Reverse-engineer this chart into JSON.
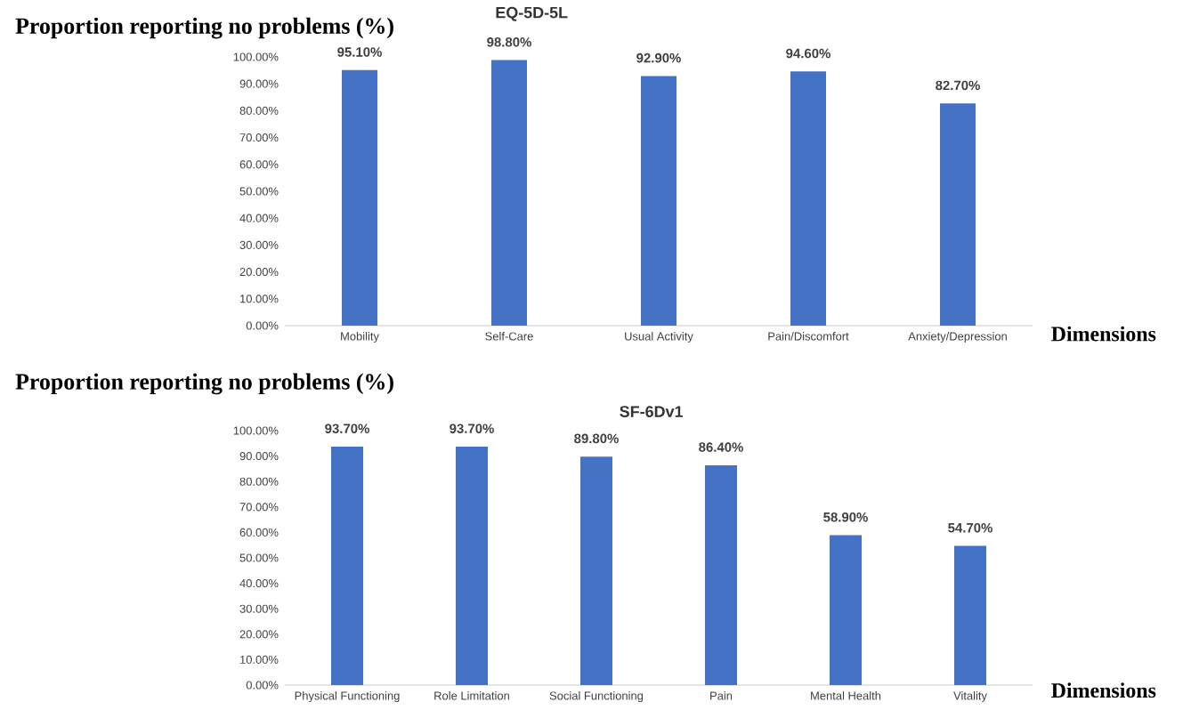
{
  "chart_data": [
    {
      "type": "bar",
      "title": "EQ-5D-5L",
      "ylabel": "Proportion reporting no problems (%)",
      "xlabel": "Dimensions",
      "categories": [
        "Mobility",
        "Self-Care",
        "Usual Activity",
        "Pain/Discomfort",
        "Anxiety/Depression"
      ],
      "values": [
        95.1,
        98.8,
        92.9,
        94.6,
        82.7
      ],
      "value_labels": [
        "95.10%",
        "98.80%",
        "92.90%",
        "94.60%",
        "82.70%"
      ],
      "color": "#4472c4",
      "ylim": [
        0,
        100
      ],
      "yticks": [
        {
          "value": 0,
          "label": "0.00%"
        },
        {
          "value": 10,
          "label": "10.00%"
        },
        {
          "value": 20,
          "label": "20.00%"
        },
        {
          "value": 30,
          "label": "30.00%"
        },
        {
          "value": 40,
          "label": "40.00%"
        },
        {
          "value": 50,
          "label": "50.00%"
        },
        {
          "value": 60,
          "label": "60.00%"
        },
        {
          "value": 70,
          "label": "70.00%"
        },
        {
          "value": 80,
          "label": "80.00%"
        },
        {
          "value": 90,
          "label": "90.00%"
        },
        {
          "value": 100,
          "label": "100.00%"
        }
      ]
    },
    {
      "type": "bar",
      "title": "SF-6Dv1",
      "ylabel": "Proportion reporting no problems (%)",
      "xlabel": "Dimensions",
      "categories": [
        "Physical Functioning",
        "Role Limitation",
        "Social Functioning",
        "Pain",
        "Mental Health",
        "Vitality"
      ],
      "values": [
        93.7,
        93.7,
        89.8,
        86.4,
        58.9,
        54.7
      ],
      "value_labels": [
        "93.70%",
        "93.70%",
        "89.80%",
        "86.40%",
        "58.90%",
        "54.70%"
      ],
      "color": "#4472c4",
      "ylim": [
        0,
        100
      ],
      "yticks": [
        {
          "value": 0,
          "label": "0.00%"
        },
        {
          "value": 10,
          "label": "10.00%"
        },
        {
          "value": 20,
          "label": "20.00%"
        },
        {
          "value": 30,
          "label": "30.00%"
        },
        {
          "value": 40,
          "label": "40.00%"
        },
        {
          "value": 50,
          "label": "50.00%"
        },
        {
          "value": 60,
          "label": "60.00%"
        },
        {
          "value": 70,
          "label": "70.00%"
        },
        {
          "value": 80,
          "label": "80.00%"
        },
        {
          "value": 90,
          "label": "90.00%"
        },
        {
          "value": 100,
          "label": "100.00%"
        }
      ]
    }
  ]
}
